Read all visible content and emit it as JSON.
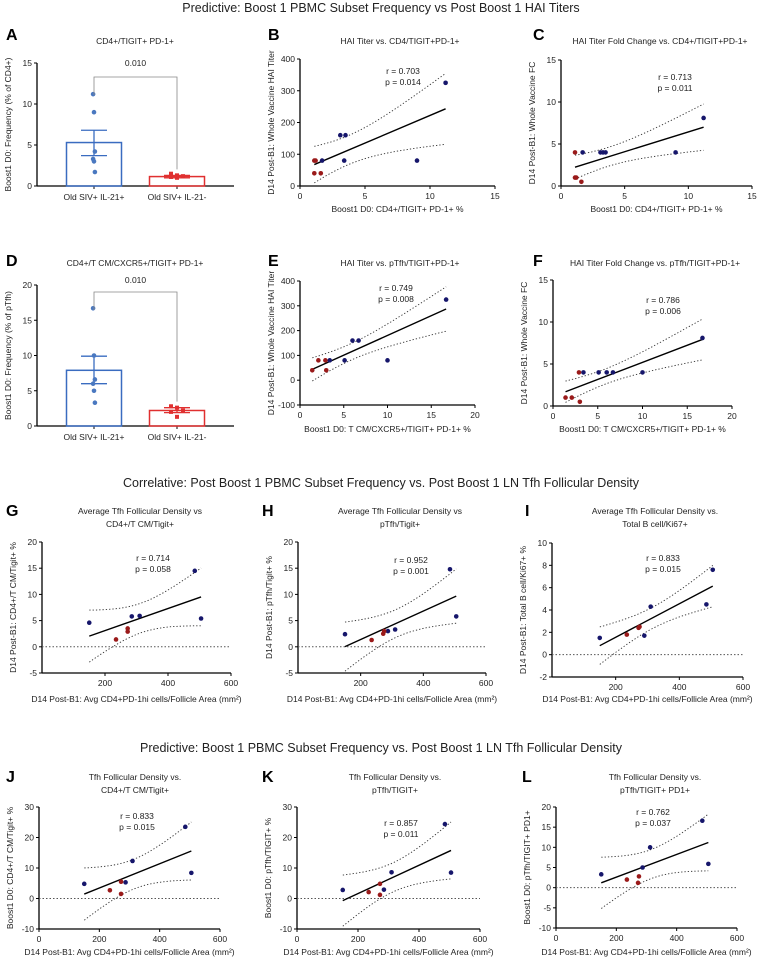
{
  "sections": [
    "Predictive: Boost 1 PBMC Subset Frequency vs Post Boost 1 HAI Titers",
    "Correlative: Post Boost 1 PBMC Subset Frequency  vs. Post Boost 1 LN Tfh Follicular Density",
    "Predictive: Boost 1 PBMC Subset Frequency vs. Post Boost 1 LN Tfh Follicular Density"
  ],
  "colors": {
    "scatter_blue": "#16166b",
    "scatter_red": "#9a1a1a",
    "bar_blue": "#3a6cc0",
    "bar_red": "#e03030",
    "fit_line": "#000000"
  },
  "chart_data": [
    {
      "id": "A",
      "letter": "A",
      "type": "bar",
      "title": [
        "CD4+/TIGIT+ PD-1+"
      ],
      "ylabel": "Boost1 D0: Frequency (% of CD4+)",
      "xlabel": "",
      "ylim": [
        0,
        15
      ],
      "yticks": [
        0,
        5,
        10,
        15
      ],
      "pvalue": "0.010",
      "categories": [
        "Old SIV+ IL-21+",
        "Old SIV+ IL-21-"
      ],
      "series": [
        {
          "mean": 5.3,
          "sem": [
            3.7,
            6.8
          ],
          "points": [
            11.2,
            9.0,
            4.2,
            3.3,
            3.0,
            1.7
          ]
        },
        {
          "mean": 1.15,
          "sem": [
            1.0,
            1.3
          ],
          "points": [
            1.5,
            1.3,
            1.2,
            1.1,
            1.0
          ]
        }
      ]
    },
    {
      "id": "B",
      "letter": "B",
      "type": "scatter",
      "title": [
        "HAI Titer vs. CD4/TIGIT+PD-1+"
      ],
      "ylabel": "D14 Post-B1: Whole Vaccine HAI Titer",
      "xlabel": "Boost1 D0: CD4+/TIGIT+ PD-1+ %",
      "xlim": [
        0,
        15
      ],
      "ylim": [
        0,
        400
      ],
      "xticks": [
        0,
        5,
        10,
        15
      ],
      "yticks": [
        0,
        100,
        200,
        300,
        400
      ],
      "zero_line": false,
      "r": "r = 0.703",
      "p": "p = 0.014",
      "blue": [
        [
          1.7,
          80
        ],
        [
          3.1,
          160
        ],
        [
          3.5,
          160
        ],
        [
          3.4,
          80
        ],
        [
          9.0,
          80
        ],
        [
          11.2,
          325
        ]
      ],
      "red": [
        [
          1.1,
          80
        ],
        [
          1.2,
          80
        ],
        [
          1.1,
          40
        ],
        [
          1.6,
          40
        ]
      ]
    },
    {
      "id": "C",
      "letter": "C",
      "type": "scatter",
      "title": [
        "HAI Titer Fold Change vs. CD4+/TIGIT+PD-1+"
      ],
      "ylabel": "D14 Post-B1: Whole Vaccine FC",
      "xlabel": "Boost1 D0: CD4+/TIGIT+ PD-1+ %",
      "xlim": [
        0,
        15
      ],
      "ylim": [
        0,
        15
      ],
      "xticks": [
        0,
        5,
        10,
        15
      ],
      "yticks": [
        0,
        5,
        10,
        15
      ],
      "zero_line": false,
      "r": "r = 0.713",
      "p": "p = 0.011",
      "blue": [
        [
          1.7,
          4
        ],
        [
          3.1,
          4
        ],
        [
          3.3,
          4
        ],
        [
          3.5,
          4
        ],
        [
          9.0,
          4
        ],
        [
          11.2,
          8.1
        ]
      ],
      "red": [
        [
          1.1,
          4
        ],
        [
          1.1,
          1
        ],
        [
          1.2,
          1
        ],
        [
          1.6,
          0.5
        ]
      ]
    },
    {
      "id": "D",
      "letter": "D",
      "type": "bar",
      "title": [
        "CD4+/T CM/CXCR5+/TIGIT+ PD-1+"
      ],
      "ylabel": "Boost1 D0: Frequency (% of pTfh)",
      "xlabel": "",
      "ylim": [
        0,
        20
      ],
      "yticks": [
        0,
        5,
        10,
        15,
        20
      ],
      "pvalue": "0.010",
      "categories": [
        "Old SIV+ IL-21+",
        "Old SIV+ IL-21-"
      ],
      "series": [
        {
          "mean": 7.9,
          "sem": [
            6.0,
            9.9
          ],
          "points": [
            16.7,
            10.0,
            6.6,
            6.0,
            5.0,
            3.3
          ]
        },
        {
          "mean": 2.2,
          "sem": [
            1.9,
            2.6
          ],
          "points": [
            2.8,
            2.6,
            2.2,
            2.0,
            1.3
          ]
        }
      ]
    },
    {
      "id": "E",
      "letter": "E",
      "type": "scatter",
      "title": [
        "HAI Titer vs. pTfh/TIGIT+PD-1+"
      ],
      "ylabel": "D14 Post-B1: Whole Vaccine HAI Titer",
      "xlabel": "Boost1 D0: T CM/CXCR5+/TIGIT+ PD-1+ %",
      "xlim": [
        0,
        20
      ],
      "ylim": [
        -100,
        400
      ],
      "xticks": [
        0,
        5,
        10,
        15,
        20
      ],
      "yticks": [
        -100,
        0,
        100,
        200,
        300,
        400
      ],
      "zero_line": false,
      "r": "r = 0.749",
      "p": "p = 0.008",
      "blue": [
        [
          3.4,
          80
        ],
        [
          5.1,
          80
        ],
        [
          6.0,
          160
        ],
        [
          6.7,
          160
        ],
        [
          10.0,
          80
        ],
        [
          16.7,
          325
        ]
      ],
      "red": [
        [
          1.4,
          40
        ],
        [
          2.1,
          80
        ],
        [
          2.9,
          80
        ],
        [
          3.0,
          40
        ]
      ]
    },
    {
      "id": "F",
      "letter": "F",
      "type": "scatter",
      "title": [
        "HAI Titer Fold Change vs. pTfh/TIGIT+PD-1+"
      ],
      "ylabel": "D14 Post-B1: Whole Vaccine FC",
      "xlabel": "Boost1 D0: T CM/CXCR5+/TIGIT+ PD-1+ %",
      "xlim": [
        0,
        20
      ],
      "ylim": [
        0,
        15
      ],
      "xticks": [
        0,
        5,
        10,
        15,
        20
      ],
      "yticks": [
        0,
        5,
        10,
        15
      ],
      "zero_line": false,
      "r": "r = 0.786",
      "p": "p = 0.006",
      "blue": [
        [
          3.4,
          4
        ],
        [
          5.1,
          4
        ],
        [
          6.0,
          4
        ],
        [
          6.7,
          4
        ],
        [
          10.0,
          4
        ],
        [
          16.7,
          8.1
        ]
      ],
      "red": [
        [
          1.4,
          1
        ],
        [
          2.1,
          1
        ],
        [
          2.9,
          4
        ],
        [
          3.0,
          0.5
        ]
      ]
    },
    {
      "id": "G",
      "letter": "G",
      "type": "scatter",
      "title": [
        "Average Tfh Follicular Density  vs",
        "CD4+/T CM/Tigit+"
      ],
      "ylabel": "D14 Post-B1: CD4+/T CM/Tigit+ %",
      "xlabel": "D14 Post-B1: Avg CD4+PD-1hi cells/Follicle Area (mm²)",
      "xlim": [
        0,
        600
      ],
      "ylim": [
        -5,
        20
      ],
      "xticks": [
        200,
        400,
        600
      ],
      "yticks": [
        -5,
        0,
        5,
        10,
        15,
        20
      ],
      "zero_line": true,
      "r": "r = 0.714",
      "p": "p = 0.058",
      "blue": [
        [
          150,
          4.6
        ],
        [
          285,
          5.8
        ],
        [
          310,
          5.9
        ],
        [
          485,
          14.5
        ],
        [
          505,
          5.4
        ]
      ],
      "red": [
        [
          235,
          1.4
        ],
        [
          272,
          2.9
        ],
        [
          272,
          3.5
        ]
      ]
    },
    {
      "id": "H",
      "letter": "H",
      "type": "scatter",
      "title": [
        "Average Tfh Follicular Density  vs",
        "pTfh/Tigit+"
      ],
      "ylabel": "D14 Post-B1: pTfh/Tigit+ %",
      "xlabel": "D14 Post-B1: Avg CD4+PD-1hi cells/Follicle Area (mm²)",
      "xlim": [
        0,
        600
      ],
      "ylim": [
        -5,
        20
      ],
      "xticks": [
        200,
        400,
        600
      ],
      "yticks": [
        -5,
        0,
        5,
        10,
        15,
        20
      ],
      "zero_line": true,
      "r": "r = 0.952",
      "p": "p = 0.001",
      "blue": [
        [
          150,
          2.4
        ],
        [
          287,
          3.0
        ],
        [
          310,
          3.3
        ],
        [
          485,
          14.8
        ],
        [
          505,
          5.8
        ]
      ],
      "red": [
        [
          235,
          1.3
        ],
        [
          272,
          2.5
        ],
        [
          275,
          3.0
        ]
      ]
    },
    {
      "id": "I",
      "letter": "I",
      "type": "scatter",
      "title": [
        "Average Tfh Follicular Density  vs.",
        "Total B cell/Ki67+"
      ],
      "ylabel": "D14 Post-B1: Total B cell/Ki67+ %",
      "xlabel": "D14 Post-B1: Avg CD4+PD-1hi cells/Follicle Area (mm²)",
      "xlim": [
        0,
        600
      ],
      "ylim": [
        -2,
        10
      ],
      "xticks": [
        200,
        400,
        600
      ],
      "yticks": [
        -2,
        0,
        2,
        4,
        6,
        8,
        10
      ],
      "zero_line": true,
      "r": "r = 0.833",
      "p": "p = 0.015",
      "blue": [
        [
          150,
          1.5
        ],
        [
          290,
          1.7
        ],
        [
          310,
          4.3
        ],
        [
          485,
          4.5
        ],
        [
          505,
          7.6
        ]
      ],
      "red": [
        [
          235,
          1.8
        ],
        [
          272,
          2.4
        ],
        [
          275,
          2.5
        ]
      ]
    },
    {
      "id": "J",
      "letter": "J",
      "type": "scatter",
      "title": [
        "Tfh Follicular Density vs.",
        "CD4+/T CM/Tigit+"
      ],
      "ylabel": "Boost1 D0: CD4+/T CM/Tigit+ %",
      "xlabel": "D14 Post-B1: Avg CD4+PD-1hi cells/Follicle Area (mm²)",
      "xlim": [
        0,
        600
      ],
      "ylim": [
        -10,
        30
      ],
      "xticks": [
        0,
        200,
        400,
        600
      ],
      "yticks": [
        -10,
        0,
        10,
        20,
        30
      ],
      "zero_line": true,
      "r": "r = 0.833",
      "p": "p = 0.015",
      "blue": [
        [
          150,
          4.8
        ],
        [
          287,
          5.3
        ],
        [
          310,
          12.3
        ],
        [
          485,
          23.5
        ],
        [
          505,
          8.4
        ]
      ],
      "red": [
        [
          235,
          2.7
        ],
        [
          272,
          1.5
        ],
        [
          272,
          5.5
        ]
      ]
    },
    {
      "id": "K",
      "letter": "K",
      "type": "scatter",
      "title": [
        "Tfh Follicular Density vs.",
        "pTfh/TIGIT+"
      ],
      "ylabel": "Boost1 D0: pTfh/TIGIT+ %",
      "xlabel": "D14 Post-B1: Avg CD4+PD-1hi cells/Follicle Area (mm²)",
      "xlim": [
        0,
        600
      ],
      "ylim": [
        -10,
        30
      ],
      "xticks": [
        0,
        200,
        400,
        600
      ],
      "yticks": [
        -10,
        0,
        10,
        20,
        30
      ],
      "zero_line": true,
      "r": "r = 0.857",
      "p": "p = 0.011",
      "blue": [
        [
          150,
          2.8
        ],
        [
          285,
          2.9
        ],
        [
          310,
          8.6
        ],
        [
          485,
          24.4
        ],
        [
          505,
          8.5
        ]
      ],
      "red": [
        [
          235,
          2.1
        ],
        [
          272,
          1.2
        ],
        [
          272,
          4.8
        ]
      ]
    },
    {
      "id": "L",
      "letter": "L",
      "type": "scatter",
      "title": [
        "Tfh Follicular Density vs.",
        "pTfh/TIGIT+ PD1+"
      ],
      "ylabel": "Boost1 D0: pTfh/TIGIT+ PD1+",
      "xlabel": "D14 Post-B1: Avg CD4+PD-1hi cells/Follicle Area (mm²)",
      "xlim": [
        0,
        600
      ],
      "ylim": [
        -10,
        20
      ],
      "xticks": [
        0,
        200,
        400,
        600
      ],
      "yticks": [
        -10,
        -5,
        0,
        5,
        10,
        15,
        20
      ],
      "zero_line": true,
      "r": "r = 0.762",
      "p": "p = 0.037",
      "blue": [
        [
          150,
          3.3
        ],
        [
          287,
          5.0
        ],
        [
          312,
          10.0
        ],
        [
          485,
          16.6
        ],
        [
          505,
          5.9
        ]
      ],
      "red": [
        [
          235,
          2.0
        ],
        [
          272,
          1.2
        ],
        [
          275,
          2.8
        ]
      ]
    }
  ]
}
